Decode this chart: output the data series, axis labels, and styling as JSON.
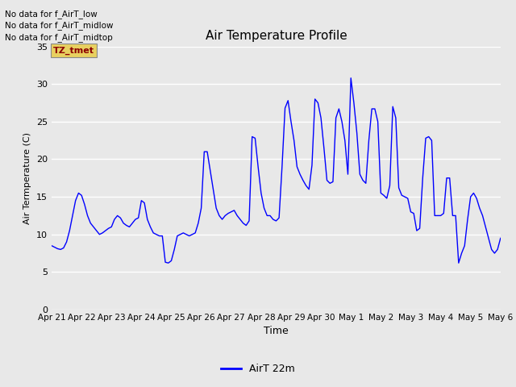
{
  "title": "Air Temperature Profile",
  "xlabel": "Time",
  "ylabel": "Air Termperature (C)",
  "legend_label": "AirT 22m",
  "legend_line_color": "#0000ff",
  "line_color": "#0000ff",
  "plot_bg_color": "#e8e8e8",
  "fig_bg_color": "#e8e8e8",
  "ylim": [
    0,
    35
  ],
  "yticks": [
    0,
    5,
    10,
    15,
    20,
    25,
    30,
    35
  ],
  "x_tick_labels": [
    "Apr 21",
    "Apr 22",
    "Apr 23",
    "Apr 24",
    "Apr 25",
    "Apr 26",
    "Apr 27",
    "Apr 28",
    "Apr 29",
    "Apr 30",
    "May 1",
    "May 2",
    "May 3",
    "May 4",
    "May 5",
    "May 6"
  ],
  "annotations_top_left": [
    "No data for f_AirT_low",
    "No data for f_AirT_midlow",
    "No data for f_AirT_midtop"
  ],
  "tz_label": "TZ_tmet",
  "time_values": [
    0,
    0.1,
    0.2,
    0.3,
    0.4,
    0.5,
    0.6,
    0.7,
    0.8,
    0.9,
    1.0,
    1.1,
    1.2,
    1.3,
    1.4,
    1.5,
    1.6,
    1.7,
    1.8,
    1.9,
    2.0,
    2.1,
    2.2,
    2.3,
    2.4,
    2.5,
    2.6,
    2.7,
    2.8,
    2.9,
    3.0,
    3.1,
    3.2,
    3.3,
    3.4,
    3.5,
    3.6,
    3.7,
    3.8,
    3.9,
    4.0,
    4.1,
    4.2,
    4.3,
    4.4,
    4.5,
    4.6,
    4.7,
    4.8,
    4.9,
    5.0,
    5.1,
    5.2,
    5.3,
    5.4,
    5.5,
    5.6,
    5.7,
    5.8,
    5.9,
    6.0,
    6.1,
    6.2,
    6.3,
    6.4,
    6.5,
    6.6,
    6.7,
    6.8,
    6.9,
    7.0,
    7.1,
    7.2,
    7.3,
    7.4,
    7.5,
    7.6,
    7.7,
    7.8,
    7.9,
    8.0,
    8.1,
    8.2,
    8.3,
    8.4,
    8.5,
    8.6,
    8.7,
    8.8,
    8.9,
    9.0,
    9.1,
    9.2,
    9.3,
    9.4,
    9.5,
    9.6,
    9.7,
    9.8,
    9.9,
    10.0,
    10.1,
    10.2,
    10.3,
    10.4,
    10.5,
    10.6,
    10.7,
    10.8,
    10.9,
    11.0,
    11.1,
    11.2,
    11.3,
    11.4,
    11.5,
    11.6,
    11.7,
    11.8,
    11.9,
    12.0,
    12.1,
    12.2,
    12.3,
    12.4,
    12.5,
    12.6,
    12.7,
    12.8,
    12.9,
    13.0,
    13.1,
    13.2,
    13.3,
    13.4,
    13.5,
    13.6,
    13.7,
    13.8,
    13.9,
    14.0,
    14.1,
    14.2,
    14.3,
    14.4,
    14.5,
    14.6,
    14.7,
    14.8,
    14.9,
    15.0
  ],
  "temp_values": [
    8.5,
    8.3,
    8.1,
    8.0,
    8.2,
    9.0,
    10.5,
    12.5,
    14.5,
    15.5,
    15.2,
    14.0,
    12.5,
    11.5,
    11.0,
    10.5,
    10.0,
    10.2,
    10.5,
    10.8,
    11.0,
    12.0,
    12.5,
    12.2,
    11.5,
    11.2,
    11.0,
    11.5,
    12.0,
    12.2,
    14.5,
    14.2,
    12.0,
    11.0,
    10.2,
    10.0,
    9.8,
    9.8,
    6.3,
    6.2,
    6.5,
    8.0,
    9.8,
    10.0,
    10.2,
    10.0,
    9.8,
    10.0,
    10.2,
    11.5,
    13.5,
    21.0,
    21.0,
    18.5,
    16.0,
    13.5,
    12.5,
    12.0,
    12.5,
    12.8,
    13.0,
    13.2,
    12.5,
    12.0,
    11.5,
    11.2,
    11.8,
    23.0,
    22.8,
    19.0,
    15.5,
    13.5,
    12.5,
    12.5,
    12.0,
    11.8,
    12.2,
    19.0,
    26.8,
    27.8,
    25.0,
    22.5,
    19.0,
    18.0,
    17.2,
    16.5,
    16.0,
    19.2,
    28.0,
    27.5,
    25.5,
    21.5,
    17.2,
    16.8,
    17.0,
    25.5,
    26.7,
    25.0,
    22.5,
    18.0,
    30.8,
    27.5,
    23.5,
    18.0,
    17.2,
    16.8,
    22.5,
    26.7,
    26.7,
    25.0,
    15.5,
    15.2,
    14.8,
    16.5,
    27.0,
    25.5,
    16.2,
    15.2,
    15.0,
    14.8,
    13.0,
    12.8,
    10.5,
    10.8,
    17.5,
    22.8,
    23.0,
    22.5,
    12.5,
    12.5,
    12.5,
    12.8,
    17.5,
    17.5,
    12.5,
    12.5,
    6.2,
    7.5,
    8.5,
    12.0,
    15.0,
    15.5,
    14.8,
    13.5,
    12.5,
    11.0,
    9.5,
    8.0,
    7.5,
    8.0,
    9.5
  ]
}
